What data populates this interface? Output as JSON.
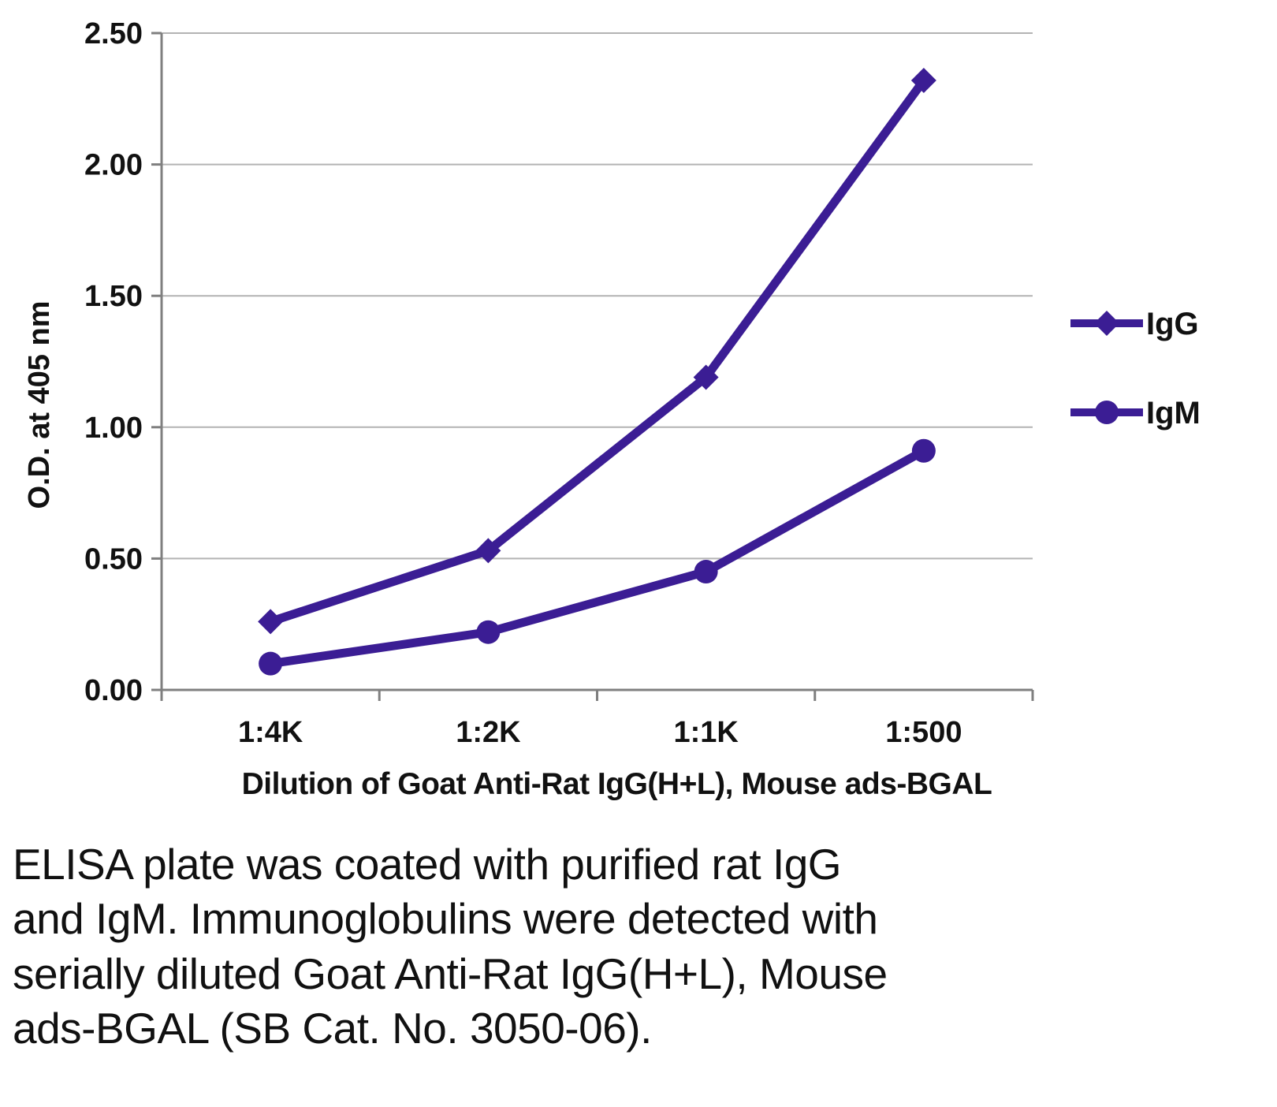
{
  "chart_data": {
    "type": "line",
    "categories": [
      "1:4K",
      "1:2K",
      "1:1K",
      "1:500"
    ],
    "series": [
      {
        "name": "IgG",
        "marker": "diamond",
        "values": [
          0.26,
          0.53,
          1.19,
          2.32
        ]
      },
      {
        "name": "IgM",
        "marker": "circle",
        "values": [
          0.1,
          0.22,
          0.45,
          0.91
        ]
      }
    ],
    "title": "",
    "xlabel": "Dilution of Goat Anti-Rat IgG(H+L), Mouse ads-BGAL",
    "ylabel": "O.D. at 405 nm",
    "ylim": [
      0,
      2.5
    ],
    "yticks": [
      0.0,
      0.5,
      1.0,
      1.5,
      2.0,
      2.5
    ],
    "ytick_labels": [
      "0.00",
      "0.50",
      "1.00",
      "1.50",
      "2.00",
      "2.50"
    ],
    "grid": true,
    "legend_position": "right",
    "series_color": "#3b1d94",
    "grid_color": "#b3b3b3",
    "axis_color": "#7f7f7f",
    "text_color": "#111111"
  },
  "caption": {
    "lines": [
      "ELISA plate was coated with purified rat IgG",
      "and IgM.  Immunoglobulins were detected with",
      "serially diluted Goat Anti-Rat IgG(H+L), Mouse",
      "ads-BGAL (SB Cat. No. 3050-06)."
    ]
  }
}
